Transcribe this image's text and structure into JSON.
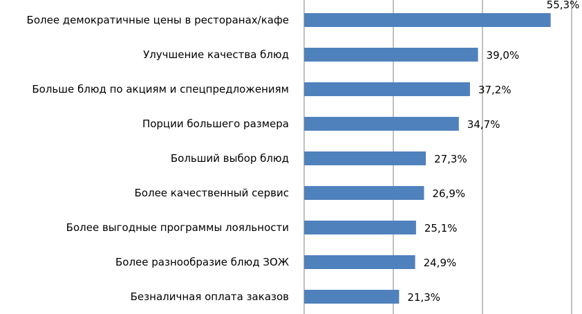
{
  "chart_data": {
    "type": "bar",
    "orientation": "horizontal",
    "categories": [
      "Более демократичные цены в ресторанах/кафе",
      "Улучшение качества блюд",
      "Больше блюд по акциям и спецпредложениям",
      "Порции большего размера",
      "Больший выбор блюд",
      "Более качественный сервис",
      "Более выгодные программы лояльности",
      "Более разнообразие блюд ЗОЖ",
      "Безналичная оплата заказов"
    ],
    "values": [
      55.3,
      39.0,
      37.2,
      34.7,
      27.3,
      26.9,
      25.1,
      24.9,
      21.3
    ],
    "value_labels": [
      "55,3%",
      "39,0%",
      "37,2%",
      "34,7%",
      "27,3%",
      "26,9%",
      "25,1%",
      "24,9%",
      "21,3%"
    ],
    "xlim": [
      0,
      60
    ],
    "grid": true,
    "bar_color": "#4F81BD",
    "title": "",
    "xlabel": "",
    "ylabel": ""
  }
}
